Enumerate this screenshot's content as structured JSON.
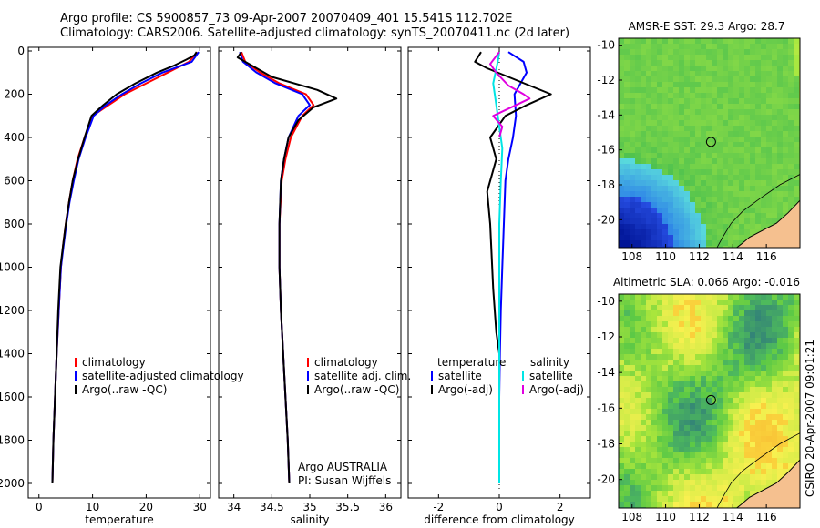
{
  "titles": {
    "line1": "Argo profile: CS 5900857_73 09-Apr-2007 20070409_401 15.541S 112.702E",
    "line2": "Climatology: CARS2006. Satellite-adjusted climatology: synTS_20070411.nc (2d later)"
  },
  "credits": {
    "argo": "Argo AUSTRALIA",
    "pi": "PI: Susan Wijffels",
    "csiro": "CSIRO 20-Apr-2007 09:01:21"
  },
  "colors": {
    "climatology": "#ff0000",
    "satellite": "#0000ff",
    "argo": "#000000",
    "sal_satellite": "#00e5e5",
    "sal_argo": "#e000e0"
  },
  "chart_data": [
    {
      "id": "temperature",
      "type": "line",
      "xlabel": "temperature",
      "ylabel": "",
      "xlim": [
        -2,
        32
      ],
      "ylim": [
        0,
        2100
      ],
      "y_reversed": true,
      "xticks": [
        0,
        10,
        20,
        30
      ],
      "yticks": [
        0,
        200,
        400,
        600,
        800,
        1000,
        1200,
        1400,
        1600,
        1800,
        2000
      ],
      "legend": [
        "climatology",
        "satellite-adjusted climatology",
        "Argo(..raw -QC)"
      ],
      "series": [
        {
          "name": "climatology",
          "color": "#ff0000",
          "x": [
            29.5,
            28,
            24,
            20,
            16,
            13,
            10,
            8.5,
            7.2,
            6.3,
            5.6,
            5.0,
            4.5,
            4.1,
            3.7,
            3.3,
            3.0,
            2.7,
            2.5
          ],
          "y": [
            5,
            50,
            100,
            150,
            200,
            250,
            300,
            400,
            500,
            600,
            700,
            800,
            900,
            1000,
            1200,
            1400,
            1600,
            1800,
            2000
          ]
        },
        {
          "name": "satellite-adjusted climatology",
          "color": "#0000ff",
          "x": [
            29.8,
            28.5,
            23,
            19,
            15.5,
            12.5,
            10.2,
            8.7,
            7.4,
            6.5,
            5.7,
            5.1,
            4.6,
            4.1,
            3.7,
            3.3,
            3.0,
            2.7,
            2.5
          ],
          "y": [
            5,
            50,
            100,
            150,
            200,
            250,
            300,
            400,
            500,
            600,
            700,
            800,
            900,
            1000,
            1200,
            1400,
            1600,
            1800,
            2000
          ]
        },
        {
          "name": "Argo(..raw -QC)",
          "color": "#000000",
          "x": [
            29.4,
            29.0,
            27.5,
            25,
            22,
            18,
            14.5,
            12,
            9.8,
            8.5,
            7.3,
            6.3,
            5.6,
            5.0,
            4.5,
            4.0,
            3.6,
            3.3,
            3.0,
            2.7,
            2.5
          ],
          "y": [
            5,
            20,
            40,
            70,
            100,
            150,
            200,
            250,
            300,
            400,
            500,
            600,
            700,
            800,
            900,
            1000,
            1200,
            1400,
            1600,
            1800,
            2000
          ]
        }
      ]
    },
    {
      "id": "salinity",
      "type": "line",
      "xlabel": "salinity",
      "xlim": [
        33.8,
        36.2
      ],
      "ylim": [
        0,
        2100
      ],
      "y_reversed": true,
      "xticks": [
        34,
        34.5,
        35,
        35.5,
        36
      ],
      "legend": [
        "climatology",
        "satellite adj. clim.",
        "Argo(..raw -QC)"
      ],
      "series": [
        {
          "name": "climatology",
          "color": "#ff0000",
          "x": [
            34.1,
            34.15,
            34.35,
            34.6,
            34.95,
            35.05,
            34.9,
            34.75,
            34.68,
            34.63,
            34.6,
            34.6,
            34.62,
            34.65,
            34.68,
            34.71,
            34.73
          ],
          "y": [
            5,
            50,
            100,
            150,
            200,
            250,
            300,
            400,
            500,
            600,
            800,
            1000,
            1200,
            1400,
            1600,
            1800,
            2000
          ]
        },
        {
          "name": "satellite adj. clim.",
          "color": "#0000ff",
          "x": [
            34.08,
            34.12,
            34.3,
            34.55,
            34.9,
            35.0,
            34.85,
            34.72,
            34.66,
            34.62,
            34.6,
            34.6,
            34.62,
            34.65,
            34.68,
            34.71,
            34.73
          ],
          "y": [
            5,
            50,
            100,
            150,
            200,
            250,
            300,
            400,
            500,
            600,
            800,
            1000,
            1200,
            1400,
            1600,
            1800,
            2000
          ]
        },
        {
          "name": "Argo(..raw -QC)",
          "color": "#000000",
          "x": [
            34.1,
            34.05,
            34.2,
            34.3,
            34.5,
            35.1,
            35.35,
            35.05,
            34.85,
            34.72,
            34.66,
            34.62,
            34.6,
            34.6,
            34.62,
            34.65,
            34.68,
            34.71,
            34.73
          ],
          "y": [
            5,
            30,
            60,
            80,
            120,
            180,
            220,
            260,
            320,
            400,
            500,
            600,
            800,
            1000,
            1200,
            1400,
            1600,
            1800,
            2000
          ]
        }
      ]
    },
    {
      "id": "difference",
      "type": "line",
      "xlabel": "difference from climatology",
      "xlim": [
        -3,
        3
      ],
      "ylim": [
        0,
        2100
      ],
      "y_reversed": true,
      "xticks": [
        -2,
        0,
        2
      ],
      "legend_left": [
        "temperature",
        "satellite",
        "Argo(-adj)"
      ],
      "legend_right": [
        "salinity",
        "satellite",
        "Argo(-adj)"
      ],
      "series": [
        {
          "name": "satellite",
          "group": "temperature",
          "color": "#0000ff",
          "x": [
            0.3,
            0.8,
            0.9,
            0.7,
            0.5,
            0.55,
            0.45,
            0.3,
            0.2,
            0.15,
            0.1,
            0.05,
            0.02,
            0.0,
            0.0
          ],
          "y": [
            5,
            50,
            100,
            150,
            200,
            300,
            400,
            500,
            600,
            800,
            1000,
            1200,
            1400,
            1600,
            2000
          ]
        },
        {
          "name": "Argo(-adj)",
          "group": "temperature",
          "color": "#000000",
          "x": [
            -0.6,
            -0.8,
            -0.4,
            0.3,
            1.0,
            1.7,
            0.9,
            0.2,
            -0.3,
            -0.1,
            -0.4,
            -0.3,
            -0.2,
            -0.1,
            0.0
          ],
          "y": [
            5,
            50,
            80,
            120,
            160,
            200,
            250,
            300,
            400,
            500,
            650,
            800,
            1100,
            1300,
            1400
          ]
        },
        {
          "name": "satellite",
          "group": "salinity",
          "color": "#00e5e5",
          "x": [
            0.0,
            -0.05,
            -0.2,
            -0.1,
            0.0,
            0.1,
            0.05,
            0.0,
            0.0,
            0.0,
            0.0
          ],
          "y": [
            5,
            50,
            150,
            250,
            350,
            450,
            600,
            800,
            1000,
            1500,
            2000
          ]
        },
        {
          "name": "Argo(-adj)",
          "group": "salinity",
          "color": "#e000e0",
          "x": [
            0.0,
            -0.3,
            -0.1,
            0.3,
            0.8,
            1.0,
            0.4,
            -0.2,
            0.1,
            0.0
          ],
          "y": [
            5,
            60,
            100,
            160,
            200,
            220,
            260,
            300,
            350,
            400
          ]
        }
      ]
    },
    {
      "id": "amsre_sst",
      "type": "heatmap",
      "title": "AMSR-E SST: 29.3 Argo: 28.7",
      "xlim": [
        107.2,
        118
      ],
      "ylim": [
        -21.6,
        -9.6
      ],
      "xticks": [
        108,
        110,
        112,
        114,
        116
      ],
      "yticks": [
        -10,
        -12,
        -14,
        -16,
        -18,
        -20
      ],
      "marker": {
        "x": 112.702,
        "y": -15.541
      }
    },
    {
      "id": "altimetric_sla",
      "type": "heatmap",
      "title": "Altimetric SLA: 0.066 Argo: -0.016",
      "xlim": [
        107.2,
        118
      ],
      "ylim": [
        -21.6,
        -9.6
      ],
      "xticks": [
        108,
        110,
        112,
        114,
        116
      ],
      "yticks": [
        -10,
        -12,
        -14,
        -16,
        -18,
        -20
      ],
      "marker": {
        "x": 112.702,
        "y": -15.541
      }
    }
  ]
}
